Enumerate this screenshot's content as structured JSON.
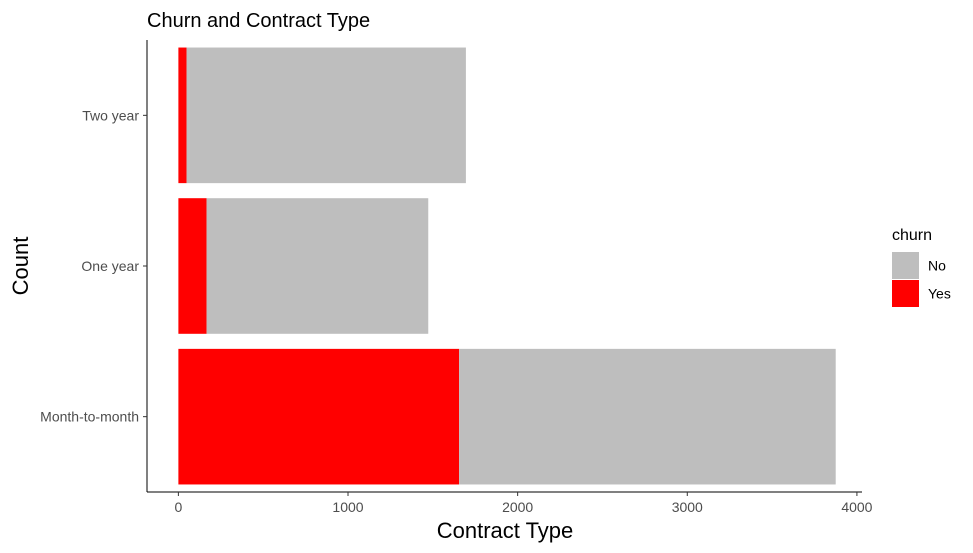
{
  "chart_data": {
    "type": "bar",
    "orientation": "horizontal",
    "stacked": true,
    "title": "Churn and Contract Type",
    "xlabel": "Contract Type",
    "ylabel": "Count",
    "categories": [
      "Month-to-month",
      "One year",
      "Two year"
    ],
    "series": [
      {
        "name": "No",
        "color": "#bebebe",
        "values": [
          2220,
          1307,
          1647
        ]
      },
      {
        "name": "Yes",
        "color": "#ff0000",
        "values": [
          1655,
          166,
          48
        ]
      }
    ],
    "xlim": [
      -185,
      4030
    ],
    "xticks": [
      0,
      1000,
      2000,
      3000,
      4000
    ],
    "xtick_labels": [
      "0",
      "1000",
      "2000",
      "3000",
      "4000"
    ],
    "grid": false,
    "legend": {
      "title": "churn",
      "position": "right",
      "entries": [
        "No",
        "Yes"
      ]
    }
  }
}
